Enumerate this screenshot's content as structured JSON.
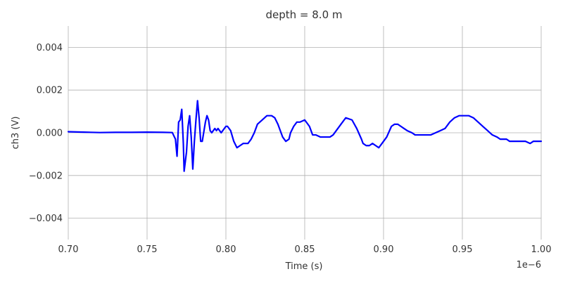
{
  "chart_data": {
    "type": "line",
    "title": "depth = 8.0 m",
    "xlabel": "Time (s)",
    "ylabel": "ch3 (V)",
    "x_offset_label": "1e−6",
    "xlim": [
      0.7,
      1.0
    ],
    "ylim": [
      -0.005,
      0.005
    ],
    "x_ticks": [
      0.7,
      0.75,
      0.8,
      0.85,
      0.9,
      0.95,
      1.0
    ],
    "x_tick_labels": [
      "0.70",
      "0.75",
      "0.80",
      "0.85",
      "0.90",
      "0.95",
      "1.00"
    ],
    "y_ticks": [
      -0.004,
      -0.002,
      0.0,
      0.002,
      0.004
    ],
    "y_tick_labels": [
      "−0.004",
      "−0.002",
      "0.000",
      "0.002",
      "0.004"
    ],
    "grid": true,
    "color": "#0000ff",
    "series": [
      {
        "x": [
          0.7,
          0.71,
          0.72,
          0.73,
          0.74,
          0.75,
          0.76,
          0.766,
          0.768,
          0.769,
          0.77,
          0.771,
          0.772,
          0.773,
          0.7735,
          0.775,
          0.776,
          0.777,
          0.778,
          0.779,
          0.78,
          0.781,
          0.782,
          0.783,
          0.784,
          0.785,
          0.787,
          0.788,
          0.789,
          0.79,
          0.791,
          0.792,
          0.793,
          0.794,
          0.795,
          0.796,
          0.797,
          0.798,
          0.8,
          0.801,
          0.803,
          0.805,
          0.807,
          0.809,
          0.811,
          0.812,
          0.814,
          0.816,
          0.818,
          0.82,
          0.823,
          0.826,
          0.829,
          0.831,
          0.833,
          0.836,
          0.838,
          0.84,
          0.841,
          0.843,
          0.845,
          0.847,
          0.85,
          0.853,
          0.855,
          0.857,
          0.86,
          0.863,
          0.866,
          0.868,
          0.87,
          0.873,
          0.876,
          0.88,
          0.883,
          0.886,
          0.887,
          0.889,
          0.891,
          0.893,
          0.895,
          0.897,
          0.899,
          0.902,
          0.905,
          0.907,
          0.909,
          0.911,
          0.913,
          0.915,
          0.918,
          0.92,
          0.922,
          0.925,
          0.927,
          0.93,
          0.933,
          0.936,
          0.939,
          0.942,
          0.945,
          0.948,
          0.951,
          0.954,
          0.957,
          0.96,
          0.963,
          0.966,
          0.969,
          0.972,
          0.974,
          0.976,
          0.978,
          0.98,
          0.983,
          0.986,
          0.99,
          0.993,
          0.995,
          0.997,
          1.0
        ],
        "y": [
          5e-05,
          3e-05,
          1e-05,
          2e-05,
          2e-05,
          3e-05,
          2e-05,
          1e-05,
          -0.0003,
          -0.0011,
          0.0005,
          0.0006,
          0.0011,
          -0.0005,
          -0.0018,
          -0.0009,
          0.0003,
          0.0008,
          -0.0002,
          -0.0017,
          -0.0004,
          0.0006,
          0.0015,
          0.0007,
          -0.0004,
          -0.0004,
          0.0005,
          0.0008,
          0.0006,
          0.0001,
          0.0,
          0.0001,
          0.0002,
          0.0001,
          0.0002,
          0.0001,
          0.0,
          0.0001,
          0.0003,
          0.0003,
          0.0001,
          -0.0004,
          -0.0007,
          -0.0006,
          -0.0005,
          -0.0005,
          -0.0005,
          -0.0003,
          0.0,
          0.0004,
          0.0006,
          0.0008,
          0.0008,
          0.0007,
          0.0004,
          -0.0002,
          -0.0004,
          -0.0003,
          0.0,
          0.0003,
          0.0005,
          0.0005,
          0.0006,
          0.0003,
          -0.0001,
          -0.0001,
          -0.0002,
          -0.0002,
          -0.0002,
          -0.0001,
          0.0001,
          0.0004,
          0.0007,
          0.0006,
          0.0002,
          -0.0003,
          -0.0005,
          -0.0006,
          -0.0006,
          -0.0005,
          -0.0006,
          -0.0007,
          -0.0005,
          -0.0002,
          0.0003,
          0.0004,
          0.0004,
          0.0003,
          0.0002,
          0.0001,
          0.0,
          -0.0001,
          -0.0001,
          -0.0001,
          -0.0001,
          -0.0001,
          0.0,
          0.0001,
          0.0002,
          0.0005,
          0.0007,
          0.0008,
          0.0008,
          0.0008,
          0.0007,
          0.0005,
          0.0003,
          0.0001,
          -0.0001,
          -0.0002,
          -0.0003,
          -0.0003,
          -0.0003,
          -0.0004,
          -0.0004,
          -0.0004,
          -0.0004,
          -0.0005,
          -0.0004,
          -0.0004,
          -0.0004
        ]
      }
    ]
  }
}
